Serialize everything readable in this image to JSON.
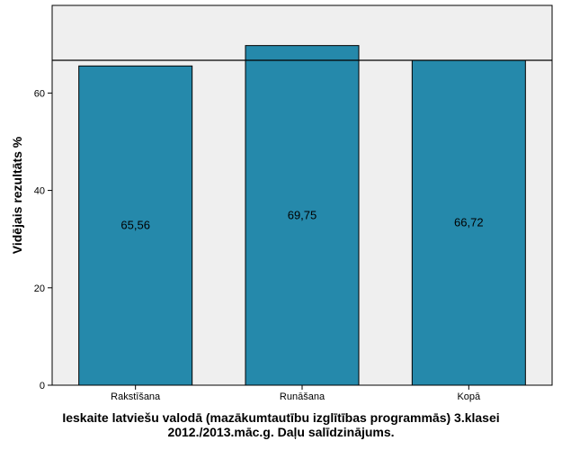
{
  "chart_data": {
    "type": "bar",
    "categories": [
      "Rakstīšana",
      "Runāšana",
      "Kopā"
    ],
    "values": [
      65.56,
      69.75,
      66.72
    ],
    "data_labels": [
      "65,56",
      "69,75",
      "66,72"
    ],
    "reference_line": 66.72,
    "ylabel": "Vidējais rezultāts %",
    "xlabel_lines": [
      "Ieskaite latviešu valodā (mazākumtautību izglītības programmās) 3.klasei",
      "2012./2013.māc.g. Daļu salīdzinājums."
    ],
    "yticks": [
      0,
      20,
      40,
      60
    ],
    "ylim": [
      0,
      78
    ],
    "grid": false,
    "colors": {
      "bar": "#2589ab",
      "plot_background": "#efefef",
      "axis": "#000000"
    }
  }
}
